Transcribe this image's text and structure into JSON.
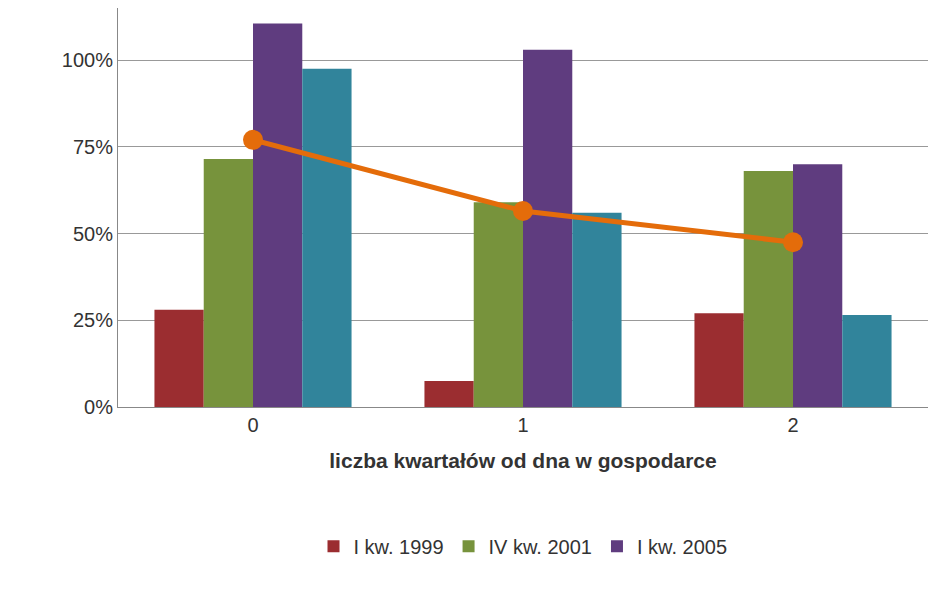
{
  "chart_data": {
    "type": "bar",
    "x_label": "liczba kwartałów od dna w gospodarce",
    "categories": [
      "0",
      "1",
      "2"
    ],
    "series": [
      {
        "name": "I kw. 1999",
        "color": "#9b2d30",
        "values": [
          28,
          7.5,
          27
        ]
      },
      {
        "name": "IV kw. 2001",
        "color": "#77933c",
        "values": [
          71.5,
          59,
          68
        ]
      },
      {
        "name": "I kw. 2005",
        "color": "#5f3c7f",
        "values": [
          110.5,
          103,
          70
        ]
      },
      {
        "color": "#31849b",
        "values": [
          97.5,
          56,
          26.5
        ]
      },
      {
        "type": "line",
        "color": "#e46c0a",
        "marker": "circle",
        "line_style": "solid",
        "values": [
          77,
          56.5,
          47.5
        ]
      }
    ],
    "ylim": [
      0,
      115
    ],
    "yticks": [
      {
        "value": 0,
        "label": "0%"
      },
      {
        "value": 25,
        "label": "25%"
      },
      {
        "value": 50,
        "label": "50%"
      },
      {
        "value": 75,
        "label": "75%"
      },
      {
        "value": 100,
        "label": "100%"
      }
    ],
    "grid": true,
    "legend": "bottom"
  }
}
